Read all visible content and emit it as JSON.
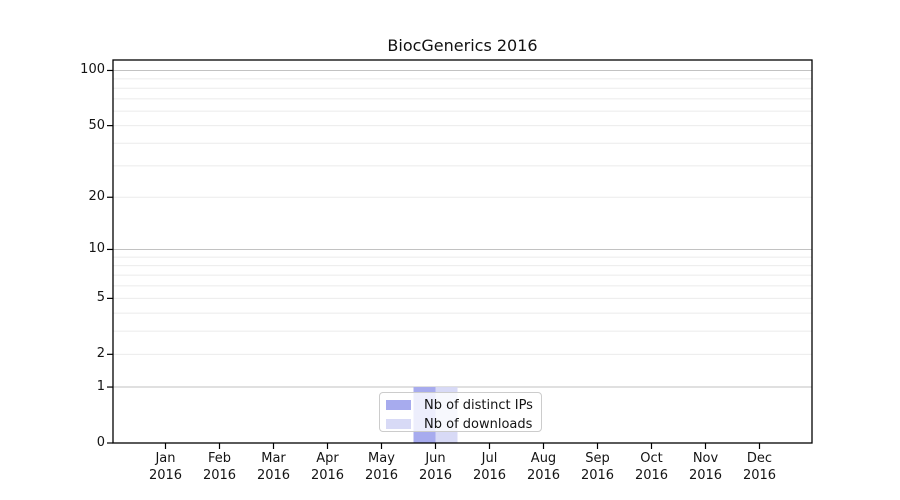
{
  "title": "BiocGenerics 2016",
  "chart_data": {
    "type": "bar",
    "title": "BiocGenerics 2016",
    "categories": [
      "Jan",
      "Feb",
      "Mar",
      "Apr",
      "May",
      "Jun",
      "Jul",
      "Aug",
      "Sep",
      "Oct",
      "Nov",
      "Dec"
    ],
    "year_label": "2016",
    "series": [
      {
        "name": "Nb of distinct IPs",
        "color": "#a7abee",
        "values": [
          0,
          0,
          0,
          0,
          0,
          1,
          0,
          0,
          0,
          0,
          0,
          0
        ]
      },
      {
        "name": "Nb of downloads",
        "color": "#d8daf6",
        "values": [
          0,
          0,
          0,
          0,
          0,
          1,
          0,
          0,
          0,
          0,
          0,
          0
        ]
      }
    ],
    "xlabel": "",
    "ylabel": "",
    "yscale": "log1p",
    "ylim": [
      0,
      114
    ],
    "yticks": [
      0,
      1,
      2,
      5,
      10,
      20,
      50,
      100
    ],
    "major_gridlines": [
      1,
      10,
      100
    ],
    "minor_gridlines": [
      2,
      3,
      4,
      5,
      6,
      7,
      8,
      9,
      20,
      30,
      40,
      50,
      60,
      70,
      80,
      90
    ],
    "grid": true,
    "legend_position": "lower center"
  },
  "colors": {
    "background": "#ffffff",
    "axis": "#000000",
    "major_grid": "#c2c2c2",
    "minor_grid": "#ebebeb",
    "text": "#141414",
    "legend_border": "#cccccc"
  }
}
